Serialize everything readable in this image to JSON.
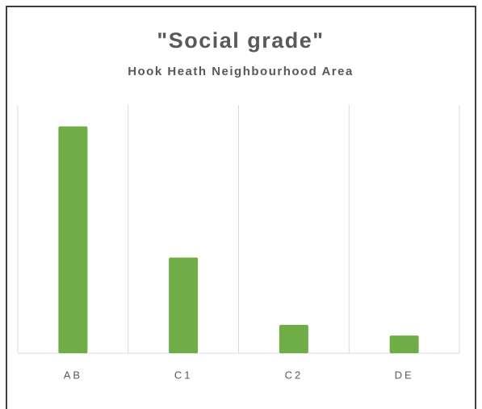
{
  "chart_data": {
    "type": "bar",
    "title": "\"Social grade\"",
    "subtitle": "Hook Heath Neighbourhood Area",
    "categories": [
      "AB",
      "C1",
      "C2",
      "DE"
    ],
    "values": [
      64,
      27,
      8,
      5
    ],
    "color": "#70ad47",
    "ylim": [
      0,
      70
    ]
  }
}
